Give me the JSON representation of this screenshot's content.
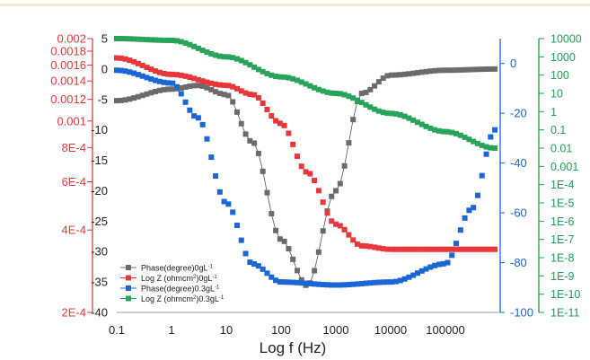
{
  "chart_data": {
    "type": "scatter",
    "xlabel": "Log f (Hz)",
    "x_scale": "log",
    "x_ticks": [
      "0.1",
      "1",
      "10",
      "100",
      "1000",
      "10000",
      "100000"
    ],
    "xlim": [
      0.1,
      1000000
    ],
    "axes": {
      "phase_left": {
        "color": "#444444",
        "range": [
          -40,
          5
        ],
        "ticks": [
          "5",
          "0",
          "-5",
          "-10",
          "-15",
          "-20",
          "-25",
          "-30",
          "-35",
          "-40"
        ]
      },
      "logz_left": {
        "color": "#e8373a",
        "scale": "log",
        "range": [
          0.0002,
          0.002
        ],
        "ticks": [
          {
            "label": "0.002",
            "value": 0.002
          },
          {
            "label": "0.0018",
            "value": 0.0018
          },
          {
            "label": "0.0016",
            "value": 0.0016
          },
          {
            "label": "0.0014",
            "value": 0.0014
          },
          {
            "label": "0.0012",
            "value": 0.0012
          },
          {
            "label": "0.001",
            "value": 0.001
          },
          {
            "label": "8E-4",
            "value": 0.0008
          },
          {
            "label": "6E-4",
            "value": 0.0006
          },
          {
            "label": "4E-4",
            "value": 0.0004
          },
          {
            "label": "2E-4",
            "value": 0.0002
          }
        ]
      },
      "phase_right": {
        "color": "#1a66d6",
        "range": [
          -100,
          10
        ],
        "ticks": [
          "0",
          "-20",
          "-40",
          "-60",
          "-80",
          "-100"
        ]
      },
      "logz_right": {
        "color": "#1f9e57",
        "scale": "log",
        "range": [
          1e-11,
          10000
        ],
        "ticks": [
          "10000",
          "1000",
          "100",
          "10",
          "1",
          "0.1",
          "0.01",
          "0.001",
          "1E-4",
          "1E-5",
          "1E-6",
          "1E-7",
          "1E-8",
          "1E-9",
          "1E-10",
          "1E-11"
        ]
      }
    },
    "legend_position": "bottom-left",
    "series": [
      {
        "name": "Phase(degree)0gL",
        "sup": "-1",
        "color": "#6b6b6b",
        "axis": "phase_left",
        "marker": "square",
        "line": true,
        "x": [
          0.1,
          1,
          3,
          10,
          30,
          100,
          300,
          1000,
          3000,
          10000,
          100000,
          800000
        ],
        "y": [
          -5.2,
          -3.3,
          -2.7,
          -4.2,
          -12,
          -28,
          -35.6,
          -20,
          -4,
          -1,
          -0.2,
          0
        ]
      },
      {
        "name": "Log Z (ohmcm",
        "mid": "2",
        "tail": ")0gL",
        "sup": "-1",
        "color": "#e8373a",
        "axis": "logz_left",
        "marker": "square",
        "line": false,
        "x": [
          0.1,
          1,
          10,
          30,
          100,
          300,
          1000,
          3000,
          10000,
          100000,
          800000
        ],
        "y": [
          0.0017,
          0.00148,
          0.00135,
          0.00125,
          0.00098,
          0.00065,
          0.00042,
          0.00035,
          0.00034,
          0.00034,
          0.00034
        ]
      },
      {
        "name": "Phase(degree)0.3gL",
        "sup": "-1",
        "color": "#1a66d6",
        "axis": "phase_left",
        "marker": "square",
        "line": false,
        "x": [
          0.1,
          1,
          3,
          10,
          30,
          100,
          1000,
          10000,
          100000,
          300000,
          800000
        ],
        "y": [
          -0.2,
          -2.3,
          -8,
          -22,
          -32,
          -35,
          -35.5,
          -35,
          -32,
          -23,
          -10
        ]
      },
      {
        "name": "Log Z (ohmcm",
        "mid": "2",
        "tail": ")0.3gL",
        "sup": "-1",
        "color": "#27a35a",
        "axis": "logz_right",
        "marker": "square",
        "line": false,
        "x": [
          0.1,
          1,
          10,
          100,
          1000,
          10000,
          100000,
          800000
        ],
        "y": [
          10000,
          8000,
          1000,
          80,
          10,
          0.8,
          0.08,
          0.01
        ]
      }
    ]
  }
}
